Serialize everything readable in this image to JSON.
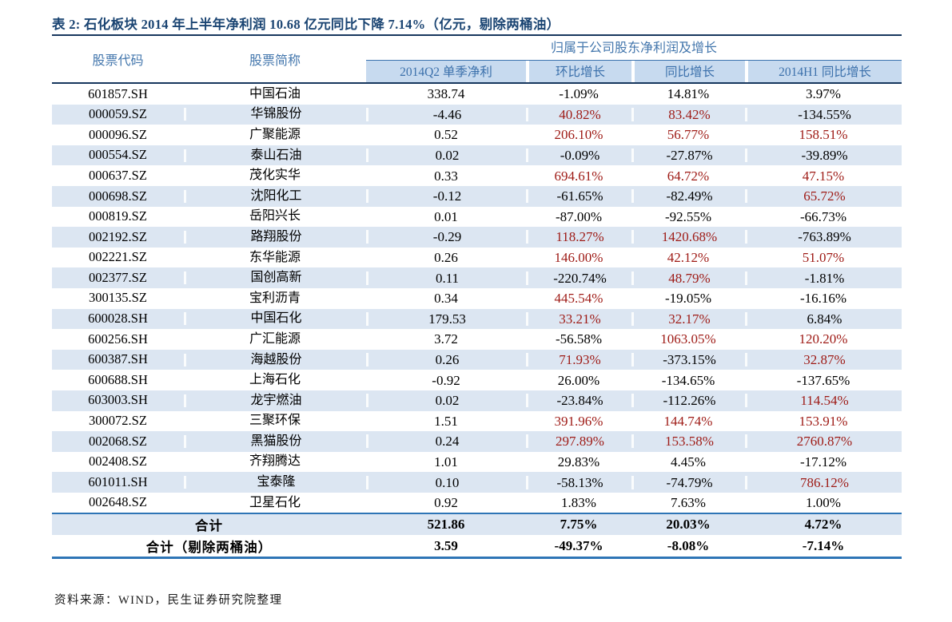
{
  "page": {
    "title": "表 2: 石化板块 2014 年上半年净利润 10.68 亿元同比下降 7.14%（亿元，剔除两桶油）",
    "source_note": "资料来源：WIND，民生证券研究院整理"
  },
  "colors": {
    "title_navy": "#1a4472",
    "header_blue": "#4477ad",
    "band_bg": "#c7daef",
    "stripe_bg": "#dce6f2",
    "negative_red": "#9e1a15",
    "rule_navy": "#17375e",
    "rule_blue": "#2e75b6"
  },
  "table": {
    "column_headers": [
      "股票代码",
      "股票简称"
    ],
    "group_header": "归属于公司股东净利润及增长",
    "sub_headers": [
      "2014Q2 单季净利",
      "环比增长",
      "同比增长",
      "2014H1 同比增长"
    ],
    "rows": [
      {
        "code": "601857.SH",
        "name": "中国石油",
        "values": [
          "338.74",
          "-1.09%",
          "14.81%",
          "3.97%"
        ],
        "red": [
          false,
          false,
          false,
          false
        ]
      },
      {
        "code": "000059.SZ",
        "name": "华锦股份",
        "values": [
          "-4.46",
          "40.82%",
          "83.42%",
          "-134.55%"
        ],
        "red": [
          false,
          true,
          true,
          false
        ]
      },
      {
        "code": "000096.SZ",
        "name": "广聚能源",
        "values": [
          "0.52",
          "206.10%",
          "56.77%",
          "158.51%"
        ],
        "red": [
          false,
          true,
          true,
          true
        ]
      },
      {
        "code": "000554.SZ",
        "name": "泰山石油",
        "values": [
          "0.02",
          "-0.09%",
          "-27.87%",
          "-39.89%"
        ],
        "red": [
          false,
          false,
          false,
          false
        ]
      },
      {
        "code": "000637.SZ",
        "name": "茂化实华",
        "values": [
          "0.33",
          "694.61%",
          "64.72%",
          "47.15%"
        ],
        "red": [
          false,
          true,
          true,
          true
        ]
      },
      {
        "code": "000698.SZ",
        "name": "沈阳化工",
        "values": [
          "-0.12",
          "-61.65%",
          "-82.49%",
          "65.72%"
        ],
        "red": [
          false,
          false,
          false,
          true
        ]
      },
      {
        "code": "000819.SZ",
        "name": "岳阳兴长",
        "values": [
          "0.01",
          "-87.00%",
          "-92.55%",
          "-66.73%"
        ],
        "red": [
          false,
          false,
          false,
          false
        ]
      },
      {
        "code": "002192.SZ",
        "name": "路翔股份",
        "values": [
          "-0.29",
          "118.27%",
          "1420.68%",
          "-763.89%"
        ],
        "red": [
          false,
          true,
          true,
          false
        ]
      },
      {
        "code": "002221.SZ",
        "name": "东华能源",
        "values": [
          "0.26",
          "146.00%",
          "42.12%",
          "51.07%"
        ],
        "red": [
          false,
          true,
          true,
          true
        ]
      },
      {
        "code": "002377.SZ",
        "name": "国创高新",
        "values": [
          "0.11",
          "-220.74%",
          "48.79%",
          "-1.81%"
        ],
        "red": [
          false,
          false,
          true,
          false
        ]
      },
      {
        "code": "300135.SZ",
        "name": "宝利沥青",
        "values": [
          "0.34",
          "445.54%",
          "-19.05%",
          "-16.16%"
        ],
        "red": [
          false,
          true,
          false,
          false
        ]
      },
      {
        "code": "600028.SH",
        "name": "中国石化",
        "values": [
          "179.53",
          "33.21%",
          "32.17%",
          "6.84%"
        ],
        "red": [
          false,
          true,
          true,
          false
        ]
      },
      {
        "code": "600256.SH",
        "name": "广汇能源",
        "values": [
          "3.72",
          "-56.58%",
          "1063.05%",
          "120.20%"
        ],
        "red": [
          false,
          false,
          true,
          true
        ]
      },
      {
        "code": "600387.SH",
        "name": "海越股份",
        "values": [
          "0.26",
          "71.93%",
          "-373.15%",
          "32.87%"
        ],
        "red": [
          false,
          true,
          false,
          true
        ]
      },
      {
        "code": "600688.SH",
        "name": "上海石化",
        "values": [
          "-0.92",
          "26.00%",
          "-134.65%",
          "-137.65%"
        ],
        "red": [
          false,
          false,
          false,
          false
        ]
      },
      {
        "code": "603003.SH",
        "name": "龙宇燃油",
        "values": [
          "0.02",
          "-23.84%",
          "-112.26%",
          "114.54%"
        ],
        "red": [
          false,
          false,
          false,
          true
        ]
      },
      {
        "code": "300072.SZ",
        "name": "三聚环保",
        "values": [
          "1.51",
          "391.96%",
          "144.74%",
          "153.91%"
        ],
        "red": [
          false,
          true,
          true,
          true
        ]
      },
      {
        "code": "002068.SZ",
        "name": "黑猫股份",
        "values": [
          "0.24",
          "297.89%",
          "153.58%",
          "2760.87%"
        ],
        "red": [
          false,
          true,
          true,
          true
        ]
      },
      {
        "code": "002408.SZ",
        "name": "齐翔腾达",
        "values": [
          "1.01",
          "29.83%",
          "4.45%",
          "-17.12%"
        ],
        "red": [
          false,
          false,
          false,
          false
        ]
      },
      {
        "code": "601011.SH",
        "name": "宝泰隆",
        "values": [
          "0.10",
          "-58.13%",
          "-74.79%",
          "786.12%"
        ],
        "red": [
          false,
          false,
          false,
          true
        ]
      },
      {
        "code": "002648.SZ",
        "name": "卫星石化",
        "values": [
          "0.92",
          "1.83%",
          "7.63%",
          "1.00%"
        ],
        "red": [
          false,
          false,
          false,
          false
        ]
      }
    ],
    "totals": [
      {
        "label": "合计",
        "values": [
          "521.86",
          "7.75%",
          "20.03%",
          "4.72%"
        ]
      },
      {
        "label": "合计（剔除两桶油）",
        "values": [
          "3.59",
          "-49.37%",
          "-8.08%",
          "-7.14%"
        ]
      }
    ]
  }
}
